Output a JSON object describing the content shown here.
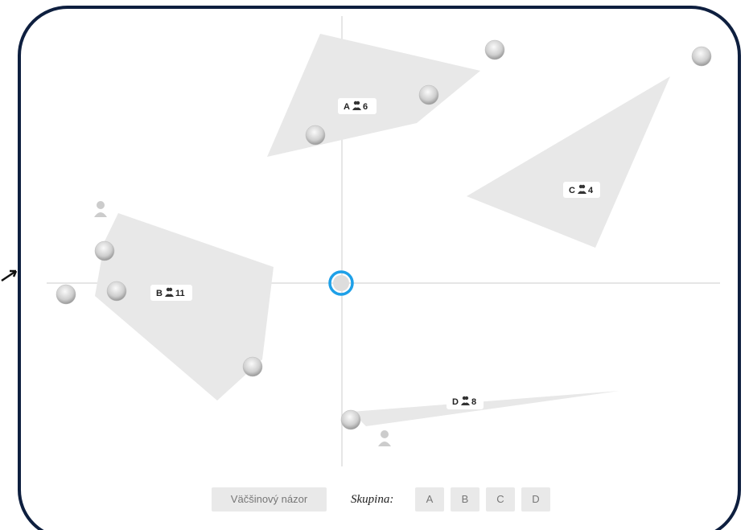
{
  "groups": [
    {
      "label": "A",
      "count": "6"
    },
    {
      "label": "B",
      "count": "11"
    },
    {
      "label": "C",
      "count": "4"
    },
    {
      "label": "D",
      "count": "8"
    }
  ],
  "controls": {
    "majority_button": "Väčšinový názor",
    "group_label": "Skupina:",
    "group_buttons": [
      "A",
      "B",
      "C",
      "D"
    ]
  }
}
